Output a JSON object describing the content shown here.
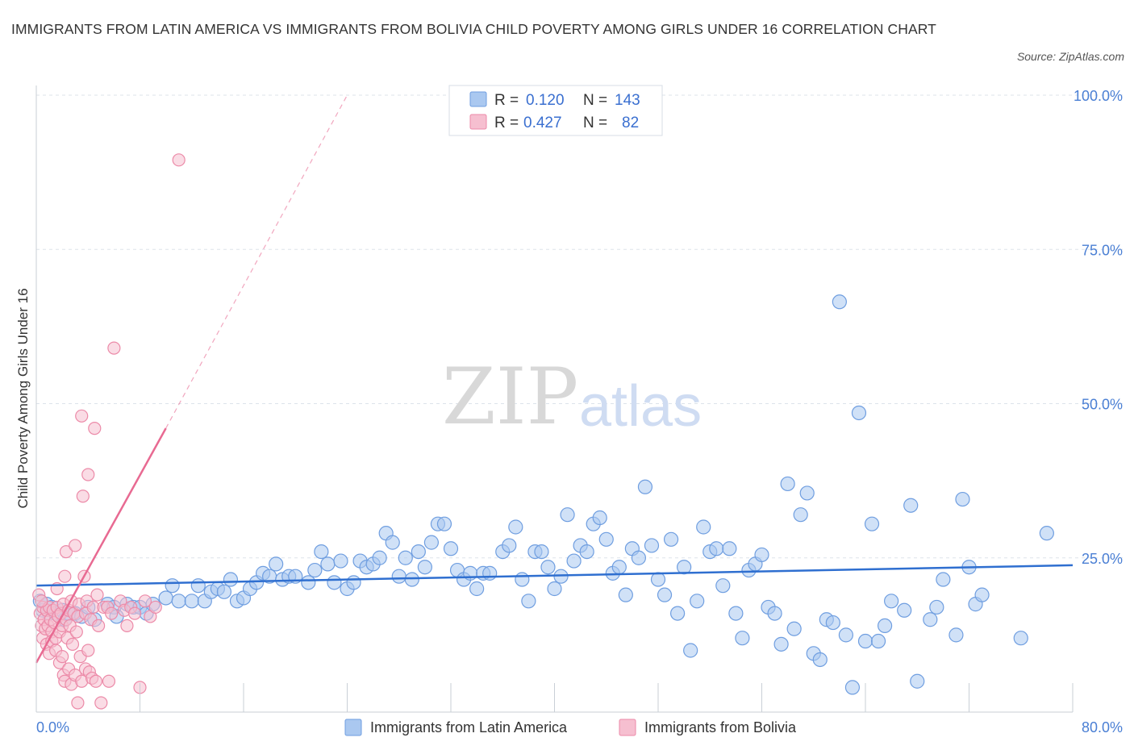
{
  "title": "IMMIGRANTS FROM LATIN AMERICA VS IMMIGRANTS FROM BOLIVIA CHILD POVERTY AMONG GIRLS UNDER 16 CORRELATION CHART",
  "source": "Source: ZipAtlas.com",
  "watermark": {
    "zip": "ZIP",
    "atlas": "atlas"
  },
  "legend": {
    "r_label": "R =",
    "n_label": "N =",
    "entries": [
      {
        "r": "0.120",
        "n": "143"
      },
      {
        "r": "0.427",
        "n": "82"
      }
    ]
  },
  "colors": {
    "blue_fill": "#aac8f0",
    "blue_stroke": "#6f9ee0",
    "blue_line": "#2f6fd0",
    "pink_fill": "#f6bfd0",
    "pink_stroke": "#ec8aa8",
    "pink_line": "#e86a92",
    "grid": "#dde3ea",
    "axis_text": "#4a7fd4"
  },
  "chart_data": {
    "type": "scatter",
    "title": "IMMIGRANTS FROM LATIN AMERICA VS IMMIGRANTS FROM BOLIVIA CHILD POVERTY AMONG GIRLS UNDER 16 CORRELATION CHART",
    "xlabel": "",
    "ylabel": "Child Poverty Among Girls Under 16",
    "xlim": [
      0,
      80
    ],
    "ylim": [
      0,
      100
    ],
    "x_tick_labels": [
      "0.0%",
      "80.0%"
    ],
    "y_tick_labels": [
      "25.0%",
      "50.0%",
      "75.0%",
      "100.0%"
    ],
    "y_ticks": [
      25,
      50,
      75,
      100
    ],
    "grid": true,
    "legend_position": "top-center",
    "series": [
      {
        "name": "Immigrants from Latin America",
        "color": "#aac8f0",
        "R": 0.12,
        "N": 143,
        "trend": {
          "x": [
            0,
            80
          ],
          "y": [
            20.5,
            23.8
          ],
          "dashed_extension": false
        },
        "points": [
          [
            0.3,
            18
          ],
          [
            0.5,
            16.5
          ],
          [
            0.8,
            17.5
          ],
          [
            1,
            16
          ],
          [
            1.2,
            17
          ],
          [
            1.5,
            16
          ],
          [
            2,
            16.5
          ],
          [
            2.2,
            15
          ],
          [
            2.5,
            16
          ],
          [
            3,
            16
          ],
          [
            3.5,
            15.5
          ],
          [
            4,
            17
          ],
          [
            4.5,
            15
          ],
          [
            5.5,
            17.5
          ],
          [
            6,
            17
          ],
          [
            6.2,
            15.5
          ],
          [
            7,
            17.5
          ],
          [
            7.5,
            17
          ],
          [
            8,
            17
          ],
          [
            8.5,
            16
          ],
          [
            9,
            17.5
          ],
          [
            10,
            18.5
          ],
          [
            10.5,
            20.5
          ],
          [
            11,
            18
          ],
          [
            12,
            18
          ],
          [
            12.5,
            20.5
          ],
          [
            13,
            18
          ],
          [
            13.5,
            19.5
          ],
          [
            14,
            20
          ],
          [
            14.5,
            19.5
          ],
          [
            15,
            21.5
          ],
          [
            15.5,
            18
          ],
          [
            16,
            18.5
          ],
          [
            16.5,
            20
          ],
          [
            17,
            21
          ],
          [
            17.5,
            22.5
          ],
          [
            18,
            22
          ],
          [
            18.5,
            24
          ],
          [
            19,
            21.5
          ],
          [
            19.5,
            22
          ],
          [
            20,
            22
          ],
          [
            21,
            21
          ],
          [
            21.5,
            23
          ],
          [
            22,
            26
          ],
          [
            22.5,
            24
          ],
          [
            23,
            21
          ],
          [
            23.5,
            24.5
          ],
          [
            24,
            20
          ],
          [
            24.5,
            21
          ],
          [
            25,
            24.5
          ],
          [
            25.5,
            23.5
          ],
          [
            26,
            24
          ],
          [
            26.5,
            25
          ],
          [
            27,
            29
          ],
          [
            27.5,
            27.5
          ],
          [
            28,
            22
          ],
          [
            28.5,
            25
          ],
          [
            29,
            21.5
          ],
          [
            29.5,
            26
          ],
          [
            30,
            23.5
          ],
          [
            30.5,
            27.5
          ],
          [
            31,
            30.5
          ],
          [
            31.5,
            30.5
          ],
          [
            32,
            26.5
          ],
          [
            32.5,
            23
          ],
          [
            33,
            21.5
          ],
          [
            33.5,
            22.5
          ],
          [
            34,
            20
          ],
          [
            34.5,
            22.5
          ],
          [
            35,
            22.5
          ],
          [
            36,
            26
          ],
          [
            36.5,
            27
          ],
          [
            37,
            30
          ],
          [
            37.5,
            21.5
          ],
          [
            38,
            18
          ],
          [
            38.5,
            26
          ],
          [
            39,
            26
          ],
          [
            39.5,
            23.5
          ],
          [
            40,
            20
          ],
          [
            40.5,
            22
          ],
          [
            41,
            32
          ],
          [
            41.5,
            24.5
          ],
          [
            42,
            27
          ],
          [
            42.5,
            26
          ],
          [
            43,
            30.5
          ],
          [
            43.5,
            31.5
          ],
          [
            44,
            28
          ],
          [
            44.5,
            22.5
          ],
          [
            45,
            23.5
          ],
          [
            45.5,
            19
          ],
          [
            46,
            26.5
          ],
          [
            46.5,
            25
          ],
          [
            47,
            36.5
          ],
          [
            47.5,
            27
          ],
          [
            48,
            21.5
          ],
          [
            48.5,
            19
          ],
          [
            49,
            28
          ],
          [
            49.5,
            16
          ],
          [
            50,
            23.5
          ],
          [
            50.5,
            10
          ],
          [
            51,
            18
          ],
          [
            51.5,
            30
          ],
          [
            52,
            26
          ],
          [
            52.5,
            26.5
          ],
          [
            53,
            20.5
          ],
          [
            53.5,
            26.5
          ],
          [
            54,
            16
          ],
          [
            54.5,
            12
          ],
          [
            55,
            23
          ],
          [
            55.5,
            24
          ],
          [
            56,
            25.5
          ],
          [
            56.5,
            17
          ],
          [
            57,
            16
          ],
          [
            57.5,
            11
          ],
          [
            58,
            37
          ],
          [
            58.5,
            13.5
          ],
          [
            59,
            32
          ],
          [
            59.5,
            35.5
          ],
          [
            60,
            9.5
          ],
          [
            60.5,
            8.5
          ],
          [
            61,
            15
          ],
          [
            61.5,
            14.5
          ],
          [
            62,
            66.5
          ],
          [
            62.5,
            12.5
          ],
          [
            63,
            4
          ],
          [
            63.5,
            48.5
          ],
          [
            64,
            11.5
          ],
          [
            64.5,
            30.5
          ],
          [
            65,
            11.5
          ],
          [
            65.5,
            14
          ],
          [
            66,
            18
          ],
          [
            67,
            16.5
          ],
          [
            67.5,
            33.5
          ],
          [
            68,
            5
          ],
          [
            69,
            15
          ],
          [
            69.5,
            17
          ],
          [
            70,
            21.5
          ],
          [
            71,
            12.5
          ],
          [
            71.5,
            34.5
          ],
          [
            72,
            23.5
          ],
          [
            72.5,
            17.5
          ],
          [
            73,
            19
          ],
          [
            76,
            12
          ],
          [
            78,
            29
          ]
        ]
      },
      {
        "name": "Immigrants from Bolivia",
        "color": "#f6bfd0",
        "R": 0.427,
        "N": 82,
        "trend": {
          "x": [
            0,
            10
          ],
          "y": [
            8,
            46
          ],
          "dashed_extension": true,
          "dashed_to": [
            24,
            100
          ]
        },
        "points": [
          [
            0.2,
            19
          ],
          [
            0.3,
            16
          ],
          [
            0.4,
            14
          ],
          [
            0.5,
            17
          ],
          [
            0.5,
            12
          ],
          [
            0.6,
            15
          ],
          [
            0.7,
            13.5
          ],
          [
            0.8,
            16.5
          ],
          [
            0.8,
            11
          ],
          [
            0.9,
            14
          ],
          [
            1,
            17
          ],
          [
            1,
            9.5
          ],
          [
            1.1,
            15
          ],
          [
            1.2,
            13
          ],
          [
            1.2,
            11.5
          ],
          [
            1.3,
            16.5
          ],
          [
            1.4,
            14.5
          ],
          [
            1.5,
            12
          ],
          [
            1.5,
            10
          ],
          [
            1.6,
            17
          ],
          [
            1.7,
            15.5
          ],
          [
            1.8,
            8
          ],
          [
            1.8,
            13
          ],
          [
            1.9,
            16
          ],
          [
            2,
            14
          ],
          [
            2,
            9
          ],
          [
            2.1,
            6
          ],
          [
            2.1,
            17.5
          ],
          [
            2.2,
            22
          ],
          [
            2.2,
            5
          ],
          [
            2.3,
            26
          ],
          [
            2.3,
            15
          ],
          [
            2.4,
            12
          ],
          [
            2.5,
            16.5
          ],
          [
            2.5,
            7
          ],
          [
            2.6,
            14
          ],
          [
            2.7,
            18
          ],
          [
            2.7,
            4.5
          ],
          [
            2.8,
            11
          ],
          [
            2.9,
            16
          ],
          [
            3,
            27
          ],
          [
            3,
            6
          ],
          [
            3.1,
            13
          ],
          [
            3.2,
            15.5
          ],
          [
            3.2,
            1.5
          ],
          [
            3.3,
            17.5
          ],
          [
            3.4,
            9
          ],
          [
            3.5,
            48
          ],
          [
            3.5,
            5
          ],
          [
            3.6,
            35
          ],
          [
            3.7,
            22
          ],
          [
            3.8,
            16
          ],
          [
            3.8,
            7
          ],
          [
            3.9,
            18
          ],
          [
            4,
            38.5
          ],
          [
            4,
            10
          ],
          [
            4.1,
            6.5
          ],
          [
            4.2,
            15
          ],
          [
            4.3,
            5.5
          ],
          [
            4.4,
            17
          ],
          [
            4.5,
            46
          ],
          [
            4.6,
            5
          ],
          [
            4.7,
            19
          ],
          [
            4.8,
            14
          ],
          [
            5,
            1.5
          ],
          [
            5.2,
            17
          ],
          [
            5.5,
            17
          ],
          [
            5.8,
            16
          ],
          [
            6,
            59
          ],
          [
            6.5,
            18
          ],
          [
            6.8,
            16.5
          ],
          [
            7,
            14
          ],
          [
            7.3,
            17
          ],
          [
            7.6,
            16
          ],
          [
            8,
            4
          ],
          [
            8.4,
            18
          ],
          [
            8.8,
            15.5
          ],
          [
            9.2,
            17
          ],
          [
            0.4,
            18
          ],
          [
            1.6,
            20
          ],
          [
            5.6,
            5
          ],
          [
            11,
            89.5
          ]
        ]
      }
    ]
  },
  "bottom_legend": [
    {
      "label": "Immigrants from Latin America"
    },
    {
      "label": "Immigrants from Bolivia"
    }
  ]
}
